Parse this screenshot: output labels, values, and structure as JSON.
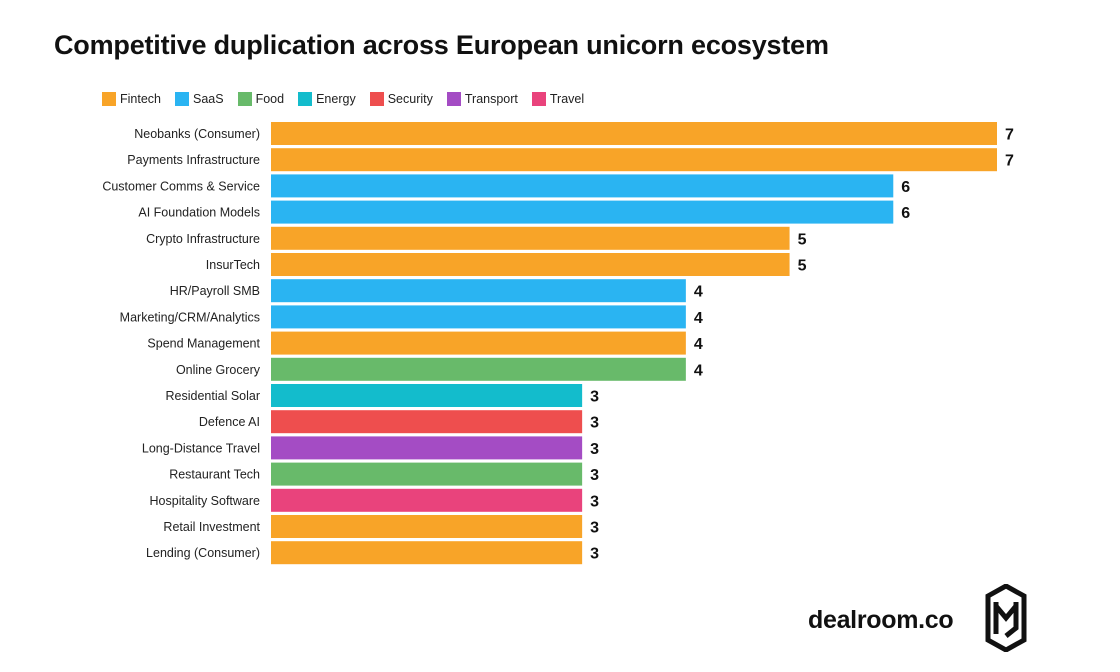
{
  "chart_data": {
    "type": "bar",
    "orientation": "horizontal",
    "title": "Competitive duplication across European unicorn ecosystem",
    "xlabel": "",
    "ylabel": "",
    "xlim": [
      0,
      7
    ],
    "grid": false,
    "legend_position": "top-left",
    "legend": [
      {
        "name": "Fintech",
        "color": "#F8A428"
      },
      {
        "name": "SaaS",
        "color": "#2AB4F2"
      },
      {
        "name": "Food",
        "color": "#68BA6A"
      },
      {
        "name": "Energy",
        "color": "#13BCCC"
      },
      {
        "name": "Security",
        "color": "#EE4E4E"
      },
      {
        "name": "Transport",
        "color": "#A44CC4"
      },
      {
        "name": "Travel",
        "color": "#E9437C"
      }
    ],
    "bars": [
      {
        "category": "Neobanks (Consumer)",
        "value": 7,
        "group": "Fintech"
      },
      {
        "category": "Payments Infrastructure",
        "value": 7,
        "group": "Fintech"
      },
      {
        "category": "Customer Comms & Service",
        "value": 6,
        "group": "SaaS"
      },
      {
        "category": "AI Foundation Models",
        "value": 6,
        "group": "SaaS"
      },
      {
        "category": "Crypto Infrastructure",
        "value": 5,
        "group": "Fintech"
      },
      {
        "category": "InsurTech",
        "value": 5,
        "group": "Fintech"
      },
      {
        "category": "HR/Payroll SMB",
        "value": 4,
        "group": "SaaS"
      },
      {
        "category": "Marketing/CRM/Analytics",
        "value": 4,
        "group": "SaaS"
      },
      {
        "category": "Spend Management",
        "value": 4,
        "group": "Fintech"
      },
      {
        "category": "Online Grocery",
        "value": 4,
        "group": "Food"
      },
      {
        "category": "Residential Solar",
        "value": 3,
        "group": "Energy"
      },
      {
        "category": "Defence AI",
        "value": 3,
        "group": "Security"
      },
      {
        "category": "Long-Distance Travel",
        "value": 3,
        "group": "Transport"
      },
      {
        "category": "Restaurant Tech",
        "value": 3,
        "group": "Food"
      },
      {
        "category": "Hospitality Software",
        "value": 3,
        "group": "Travel"
      },
      {
        "category": "Retail Investment",
        "value": 3,
        "group": "Fintech"
      },
      {
        "category": "Lending (Consumer)",
        "value": 3,
        "group": "Fintech"
      }
    ]
  },
  "brand": {
    "name": "dealroom.co",
    "logo_icon": "dealroom-logo-icon"
  }
}
